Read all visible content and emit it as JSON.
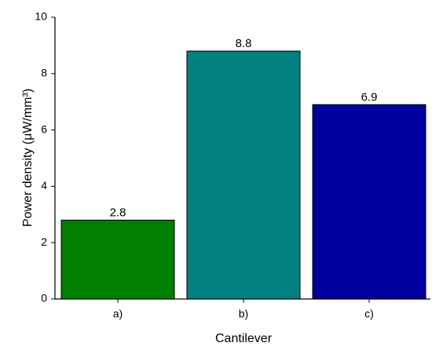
{
  "chart_data": {
    "type": "bar",
    "x_label": "Cantilever",
    "y_label": "Power density (μW/mm³)",
    "categories": [
      "a)",
      "b)",
      "c)"
    ],
    "values": [
      2.8,
      8.8,
      6.9
    ],
    "colors": [
      "#007f00",
      "#008080",
      "#0000a0"
    ],
    "ylim": [
      0,
      10
    ],
    "yticks": [
      0,
      2,
      4,
      6,
      8,
      10
    ],
    "grid": false
  }
}
